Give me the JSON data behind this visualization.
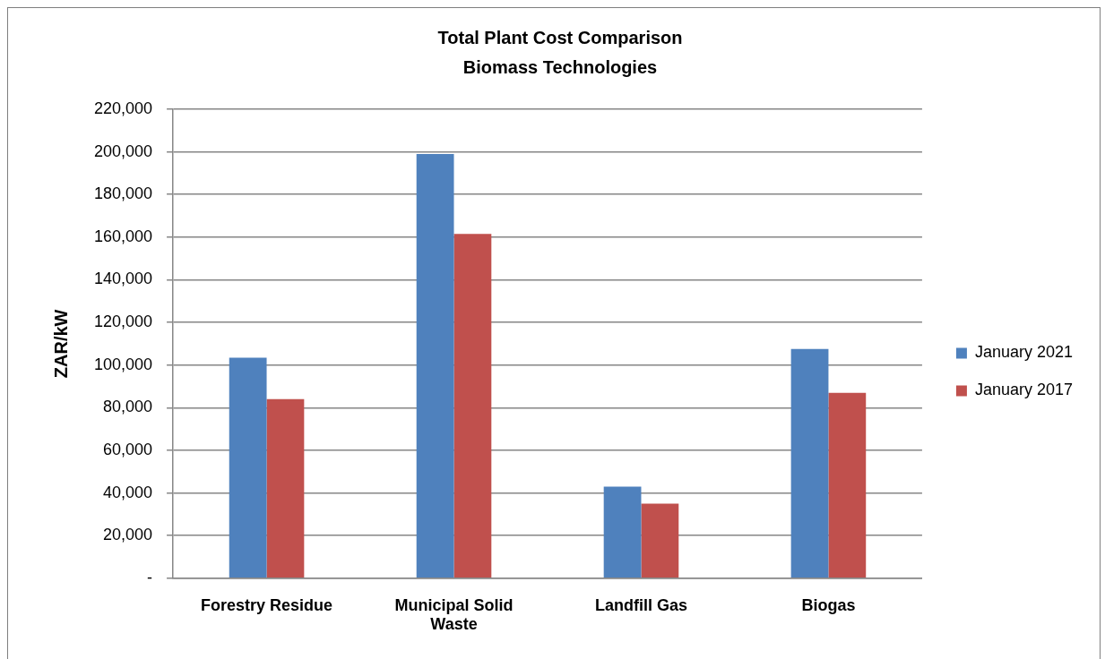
{
  "chart_data": {
    "type": "bar",
    "title": "Total Plant Cost Comparison",
    "subtitle": "Biomass Technologies",
    "ylabel": "ZAR/kW",
    "categories": [
      "Forestry Residue",
      "Municipal Solid Waste",
      "Landfill Gas",
      "Biogas"
    ],
    "series": [
      {
        "name": "January 2021",
        "color": "#4f81bd",
        "values": [
          103500,
          199000,
          43000,
          107500
        ]
      },
      {
        "name": "January 2017",
        "color": "#c0504d",
        "values": [
          84000,
          161500,
          35000,
          87000
        ]
      }
    ],
    "ylim": [
      0,
      220000
    ],
    "yticks": [
      {
        "value": 0,
        "label": "-"
      },
      {
        "value": 20000,
        "label": "20,000"
      },
      {
        "value": 40000,
        "label": "40,000"
      },
      {
        "value": 60000,
        "label": "60,000"
      },
      {
        "value": 80000,
        "label": "80,000"
      },
      {
        "value": 100000,
        "label": "100,000"
      },
      {
        "value": 120000,
        "label": "120,000"
      },
      {
        "value": 140000,
        "label": "140,000"
      },
      {
        "value": 160000,
        "label": "160,000"
      },
      {
        "value": 180000,
        "label": "180,000"
      },
      {
        "value": 200000,
        "label": "200,000"
      },
      {
        "value": 220000,
        "label": "220,000"
      }
    ],
    "grid": "y",
    "legend": "right"
  }
}
